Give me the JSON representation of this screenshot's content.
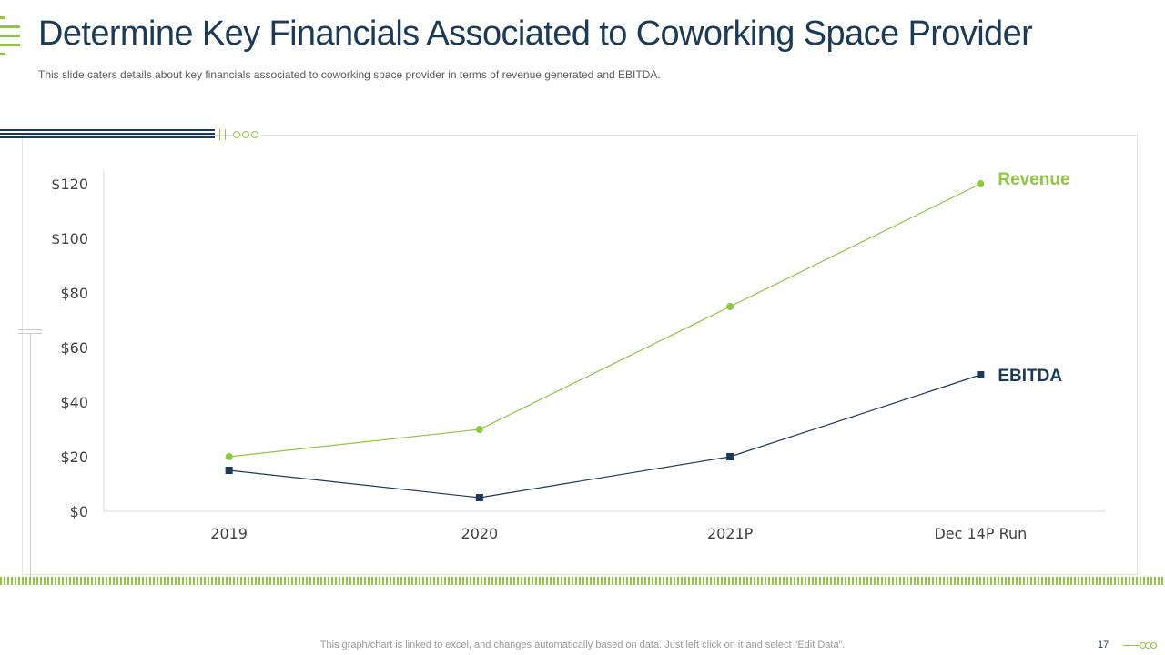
{
  "header": {
    "title": "Determine Key Financials Associated to Coworking Space Provider",
    "subtitle": "This slide caters details about key financials associated to coworking space provider  in terms of revenue  generated and EBITDA."
  },
  "footer": {
    "note": "This graph/chart is linked to excel,  and changes automatically based on data. Just left click on it and select “Edit Data”.",
    "page_number": "17"
  },
  "colors": {
    "accent_green": "#8dc63f",
    "navy": "#1b3a57"
  },
  "chart_data": {
    "type": "line",
    "title": "",
    "xlabel": "",
    "ylabel": "",
    "categories": [
      "2019",
      "2020",
      "2021P",
      "Dec 14P Run"
    ],
    "y_ticks": [
      "$0",
      "$20",
      "$40",
      "$60",
      "$80",
      "$100",
      "$120"
    ],
    "ylim": [
      0,
      125
    ],
    "grid": false,
    "series": [
      {
        "name": "Revenue",
        "values": [
          20,
          30,
          75,
          120
        ],
        "color": "#8dc63f",
        "marker": "circle"
      },
      {
        "name": "EBITDA",
        "values": [
          15,
          5,
          20,
          50
        ],
        "color": "#1b3a57",
        "marker": "square"
      }
    ]
  }
}
